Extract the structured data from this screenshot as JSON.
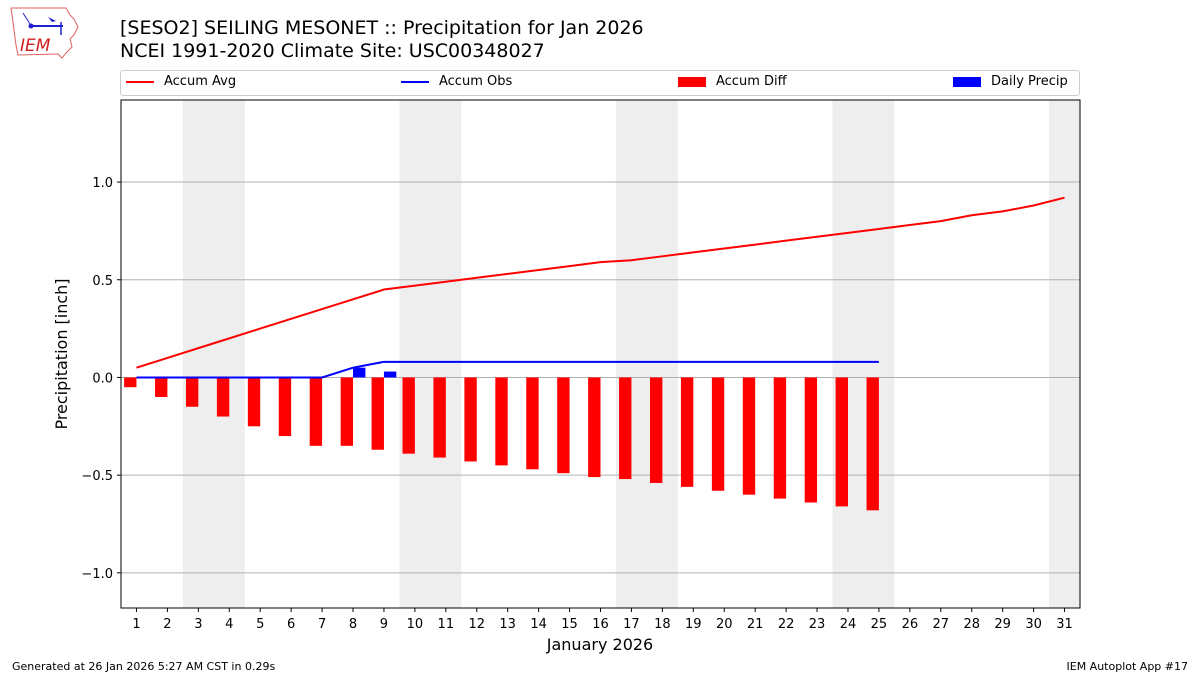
{
  "header": {
    "title": "[SESO2] SEILING MESONET :: Precipitation for Jan 2026",
    "subtitle": "NCEI 1991-2020 Climate Site: USC00348027",
    "logo_text": "IEM"
  },
  "footer": {
    "generated": "Generated at 26 Jan 2026 5:27 AM CST in 0.29s",
    "app": "IEM Autoplot App #17"
  },
  "chart_data": {
    "type": "bar",
    "xlabel": "January 2026",
    "ylabel": "Precipitation [inch]",
    "xlim": [
      0.5,
      31.5
    ],
    "ylim": [
      -1.18,
      1.42
    ],
    "yticks": [
      -1.0,
      -0.5,
      0.0,
      0.5,
      1.0
    ],
    "ytick_labels": [
      "−1.0",
      "−0.5",
      "0.0",
      "0.5",
      "1.0"
    ],
    "grid": "horizontal",
    "legend_position": "top",
    "weekend_shading_days": [
      3,
      4,
      10,
      11,
      17,
      18,
      24,
      25,
      31
    ],
    "shading_color": "#eeeeee",
    "days": [
      1,
      2,
      3,
      4,
      5,
      6,
      7,
      8,
      9,
      10,
      11,
      12,
      13,
      14,
      15,
      16,
      17,
      18,
      19,
      20,
      21,
      22,
      23,
      24,
      25,
      26,
      27,
      28,
      29,
      30,
      31
    ],
    "series": [
      {
        "name": "Accum Avg",
        "kind": "line",
        "color": "#ff0000",
        "values": [
          0.05,
          0.1,
          0.15,
          0.2,
          0.25,
          0.3,
          0.35,
          0.4,
          0.45,
          0.47,
          0.49,
          0.51,
          0.53,
          0.55,
          0.57,
          0.59,
          0.6,
          0.62,
          0.64,
          0.66,
          0.68,
          0.7,
          0.72,
          0.74,
          0.76,
          0.78,
          0.8,
          0.83,
          0.85,
          0.88,
          0.92
        ]
      },
      {
        "name": "Accum Obs",
        "kind": "line",
        "color": "#0000ff",
        "values": [
          0,
          0,
          0,
          0,
          0,
          0,
          0,
          0.05,
          0.08,
          0.08,
          0.08,
          0.08,
          0.08,
          0.08,
          0.08,
          0.08,
          0.08,
          0.08,
          0.08,
          0.08,
          0.08,
          0.08,
          0.08,
          0.08,
          0.08
        ]
      },
      {
        "name": "Accum Diff",
        "kind": "bar",
        "color": "#ff0000",
        "values": [
          -0.05,
          -0.1,
          -0.15,
          -0.2,
          -0.25,
          -0.3,
          -0.35,
          -0.35,
          -0.37,
          -0.39,
          -0.41,
          -0.43,
          -0.45,
          -0.47,
          -0.49,
          -0.51,
          -0.52,
          -0.54,
          -0.56,
          -0.58,
          -0.6,
          -0.62,
          -0.64,
          -0.66,
          -0.68
        ]
      },
      {
        "name": "Daily Precip",
        "kind": "bar",
        "color": "#0000ff",
        "values": [
          0,
          0,
          0,
          0,
          0,
          0,
          0,
          0.05,
          0.03,
          0,
          0,
          0,
          0,
          0,
          0,
          0,
          0,
          0,
          0,
          0,
          0,
          0,
          0,
          0,
          0
        ]
      }
    ]
  }
}
